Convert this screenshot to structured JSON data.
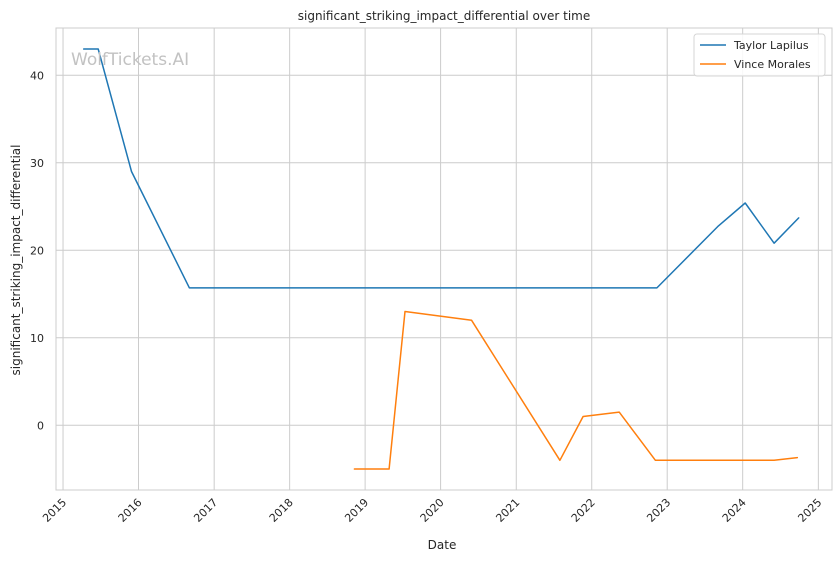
{
  "watermark": "WolfTickets.AI",
  "chart_data": {
    "type": "line",
    "title": "significant_striking_impact_differential over time",
    "xlabel": "Date",
    "ylabel": "significant_striking_impact_differential",
    "x_ticks": [
      "2015",
      "2016",
      "2017",
      "2018",
      "2019",
      "2020",
      "2021",
      "2022",
      "2023",
      "2024",
      "2025"
    ],
    "y_ticks": [
      0,
      10,
      20,
      30,
      40
    ],
    "xlim": [
      "2014-11-28",
      "2025-03-08"
    ],
    "ylim": [
      -7.4,
      45.4
    ],
    "grid": true,
    "legend_position": "top-right",
    "series": [
      {
        "name": "Taylor Lapilus",
        "color": "#1f77b4",
        "points": [
          {
            "x": "2015-04-11",
            "y": 43.0
          },
          {
            "x": "2015-06-20",
            "y": 43.0
          },
          {
            "x": "2015-11-28",
            "y": 29.0
          },
          {
            "x": "2016-09-03",
            "y": 15.7
          },
          {
            "x": "2022-11-12",
            "y": 15.7
          },
          {
            "x": "2023-09-02",
            "y": 22.7
          },
          {
            "x": "2024-01-13",
            "y": 25.4
          },
          {
            "x": "2024-06-01",
            "y": 20.8
          },
          {
            "x": "2024-09-28",
            "y": 23.7
          }
        ]
      },
      {
        "name": "Vince Morales",
        "color": "#ff7f0e",
        "points": [
          {
            "x": "2018-11-10",
            "y": -5.0
          },
          {
            "x": "2019-04-27",
            "y": -5.0
          },
          {
            "x": "2019-07-13",
            "y": 13.0
          },
          {
            "x": "2020-05-30",
            "y": 12.0
          },
          {
            "x": "2021-07-31",
            "y": -4.0
          },
          {
            "x": "2021-11-20",
            "y": 1.0
          },
          {
            "x": "2022-05-14",
            "y": 1.5
          },
          {
            "x": "2022-11-05",
            "y": -4.0
          },
          {
            "x": "2024-06-01",
            "y": -4.0
          },
          {
            "x": "2024-09-21",
            "y": -3.7
          }
        ]
      }
    ]
  }
}
